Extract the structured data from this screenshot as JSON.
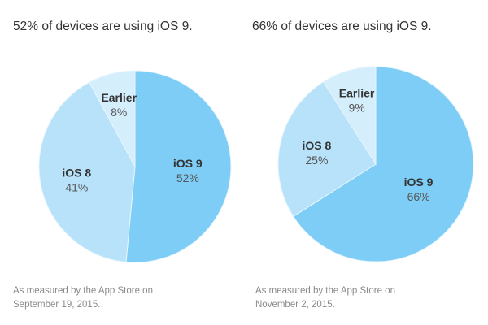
{
  "chart_data": [
    {
      "type": "pie",
      "title": "52% of devices are using iOS 9.",
      "slices": [
        {
          "label": "iOS 9",
          "value": 52,
          "value_label": "52%",
          "color": "#7dcdf6"
        },
        {
          "label": "iOS 8",
          "value": 41,
          "value_label": "41%",
          "color": "#b8e2f9"
        },
        {
          "label": "Earlier",
          "value": 8,
          "value_label": "8%",
          "color": "#d5eefc"
        }
      ],
      "footnote": [
        "As measured by the App Store on",
        "September 19, 2015."
      ]
    },
    {
      "type": "pie",
      "title": "66% of devices are using iOS 9.",
      "slices": [
        {
          "label": "iOS 9",
          "value": 66,
          "value_label": "66%",
          "color": "#7dcdf6"
        },
        {
          "label": "iOS 8",
          "value": 25,
          "value_label": "25%",
          "color": "#b8e2f9"
        },
        {
          "label": "Earlier",
          "value": 9,
          "value_label": "9%",
          "color": "#d5eefc"
        }
      ],
      "footnote": [
        "As measured by the App Store on",
        "November 2, 2015."
      ]
    }
  ]
}
